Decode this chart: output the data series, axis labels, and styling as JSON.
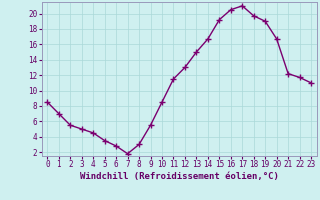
{
  "x": [
    0,
    1,
    2,
    3,
    4,
    5,
    6,
    7,
    8,
    9,
    10,
    11,
    12,
    13,
    14,
    15,
    16,
    17,
    18,
    19,
    20,
    21,
    22,
    23
  ],
  "y": [
    8.5,
    7.0,
    5.5,
    5.0,
    4.5,
    3.5,
    2.8,
    1.8,
    3.0,
    5.5,
    8.5,
    11.5,
    13.0,
    15.0,
    16.7,
    19.2,
    20.5,
    21.0,
    19.7,
    19.0,
    16.7,
    12.2,
    11.7,
    11.0
  ],
  "line_color": "#7B0070",
  "marker": "+",
  "bg_color": "#cff0f0",
  "grid_color": "#aad8d8",
  "xlabel": "Windchill (Refroidissement éolien,°C)",
  "xlim": [
    -0.5,
    23.5
  ],
  "ylim": [
    1.5,
    21.5
  ],
  "xticks": [
    0,
    1,
    2,
    3,
    4,
    5,
    6,
    7,
    8,
    9,
    10,
    11,
    12,
    13,
    14,
    15,
    16,
    17,
    18,
    19,
    20,
    21,
    22,
    23
  ],
  "xtick_labels": [
    "0",
    "1",
    "2",
    "3",
    "4",
    "5",
    "6",
    "7",
    "8",
    "9",
    "10",
    "11",
    "12",
    "13",
    "14",
    "15",
    "16",
    "17",
    "18",
    "19",
    "20",
    "21",
    "22",
    "23"
  ],
  "yticks": [
    2,
    4,
    6,
    8,
    10,
    12,
    14,
    16,
    18,
    20
  ],
  "ytick_labels": [
    "2",
    "4",
    "6",
    "8",
    "10",
    "12",
    "14",
    "16",
    "18",
    "20"
  ],
  "tick_label_size": 5.5,
  "xlabel_size": 6.5,
  "line_width": 1.0,
  "marker_size": 4
}
